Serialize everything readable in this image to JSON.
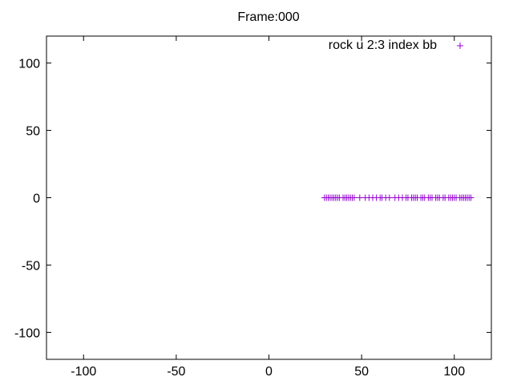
{
  "chart_data": {
    "type": "scatter",
    "title": "Frame:000",
    "xlabel": "",
    "ylabel": "",
    "xlim": [
      -120,
      120
    ],
    "ylim": [
      -120,
      120
    ],
    "x_ticks": [
      -100,
      -50,
      0,
      50,
      100
    ],
    "y_ticks": [
      100,
      50,
      0,
      -50,
      -100
    ],
    "grid": false,
    "legend_position": "top-right",
    "series": [
      {
        "name": "rock u 2:3 index bb",
        "color": "#9400d3",
        "marker": "plus",
        "x": [
          30,
          31,
          32,
          33,
          34,
          35,
          36,
          37,
          38,
          40,
          41,
          42,
          43,
          44,
          45,
          46,
          49,
          52,
          54,
          56,
          58,
          60,
          61,
          63,
          65,
          68,
          70,
          72,
          74,
          75,
          77,
          78,
          79,
          80,
          82,
          83,
          84,
          86,
          87,
          88,
          90,
          91,
          92,
          94,
          95,
          97,
          98,
          99,
          100,
          101,
          103,
          104,
          105,
          106,
          107,
          108,
          109
        ],
        "y": [
          0,
          0,
          0,
          0,
          0,
          0,
          0,
          0,
          0,
          0,
          0,
          0,
          0,
          0,
          0,
          0,
          0,
          0,
          0,
          0,
          0,
          0,
          0,
          0,
          0,
          0,
          0,
          0,
          0,
          0,
          0,
          0,
          0,
          0,
          0,
          0,
          0,
          0,
          0,
          0,
          0,
          0,
          0,
          0,
          0,
          0,
          0,
          0,
          0,
          0,
          0,
          0,
          0,
          0,
          0,
          0,
          0
        ]
      }
    ]
  }
}
